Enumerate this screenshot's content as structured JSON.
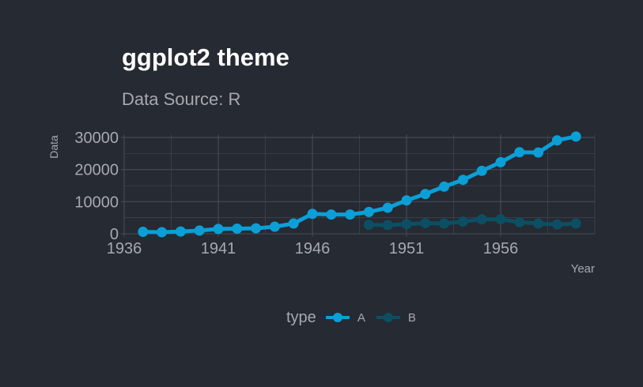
{
  "title": "ggplot2 theme",
  "subtitle": "Data Source: R",
  "legend": {
    "title": "type"
  },
  "colors": {
    "background": "#252a33",
    "grid": "#474c56",
    "text": "#a7a9ad",
    "series_A": "#0b9fd7",
    "series_B": "#0c4f63"
  },
  "chart_data": {
    "type": "line",
    "xlabel": "Year",
    "ylabel": "Data",
    "xlim": [
      1936,
      1961
    ],
    "ylim": [
      0,
      31000
    ],
    "x_ticks": [
      1936,
      1941,
      1946,
      1951,
      1956
    ],
    "y_ticks": [
      0,
      10000,
      20000,
      30000
    ],
    "grid": true,
    "legend_position": "bottom",
    "series": [
      {
        "name": "A",
        "x": [
          1937,
          1938,
          1939,
          1940,
          1941,
          1942,
          1943,
          1944,
          1945,
          1946,
          1947,
          1948,
          1949,
          1950,
          1951,
          1952,
          1953,
          1954,
          1955,
          1956,
          1957,
          1958,
          1959,
          1960
        ],
        "values": [
          600,
          500,
          700,
          1000,
          1500,
          1600,
          1700,
          2200,
          3200,
          6200,
          6000,
          6000,
          6800,
          8100,
          10400,
          12400,
          14700,
          16800,
          19600,
          22300,
          25400,
          25300,
          29100,
          30300
        ]
      },
      {
        "name": "B",
        "x": [
          1949,
          1950,
          1951,
          1952,
          1953,
          1954,
          1955,
          1956,
          1957,
          1958,
          1959,
          1960
        ],
        "values": [
          2800,
          2700,
          3000,
          3300,
          3200,
          3800,
          4500,
          4500,
          3600,
          3200,
          2900,
          3200
        ]
      }
    ]
  }
}
